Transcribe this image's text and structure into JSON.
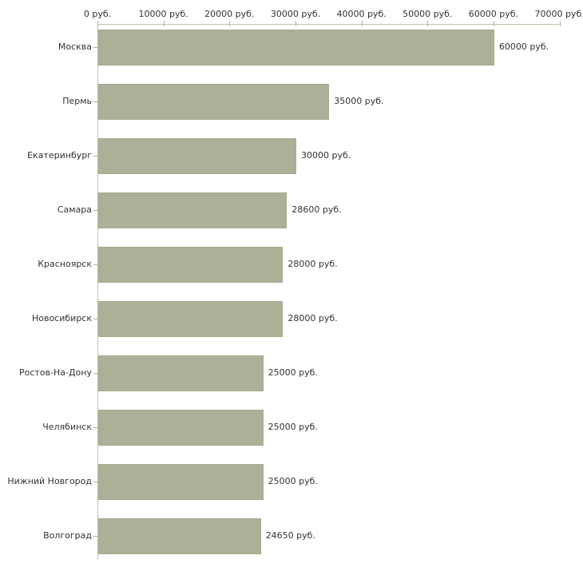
{
  "chart_data": {
    "type": "bar",
    "orientation": "horizontal",
    "title": "",
    "xlabel": "",
    "ylabel": "",
    "xlim": [
      0,
      70000
    ],
    "grid": false,
    "legend": false,
    "categories": [
      "Москва",
      "Пермь",
      "Екатеринбург",
      "Самара",
      "Красноярск",
      "Новосибирск",
      "Ростов-На-Дону",
      "Челябинск",
      "Нижний Новгород",
      "Волгоград"
    ],
    "values": [
      60000,
      35000,
      30000,
      28600,
      28000,
      28000,
      25000,
      25000,
      25000,
      24650
    ],
    "value_labels": [
      "60000 руб.",
      "35000 руб.",
      "30000 руб.",
      "28600 руб.",
      "28000 руб.",
      "28000 руб.",
      "25000 руб.",
      "25000 руб.",
      "25000 руб.",
      "24650 руб."
    ],
    "x_ticks": [
      {
        "value": 0,
        "label": "0 руб."
      },
      {
        "value": 10000,
        "label": "10000 руб."
      },
      {
        "value": 20000,
        "label": "20000 руб."
      },
      {
        "value": 30000,
        "label": "30000 руб."
      },
      {
        "value": 40000,
        "label": "40000 руб."
      },
      {
        "value": 50000,
        "label": "50000 руб."
      },
      {
        "value": 60000,
        "label": "60000 руб."
      },
      {
        "value": 70000,
        "label": "70000 руб."
      }
    ],
    "colors": {
      "bar_fill": "#abb198",
      "bar_border": "#a5ab8e",
      "axis_line": "#c6c2ac",
      "tick_mark": "#b5b19a",
      "text": "#333333",
      "background": "#ffffff"
    }
  }
}
